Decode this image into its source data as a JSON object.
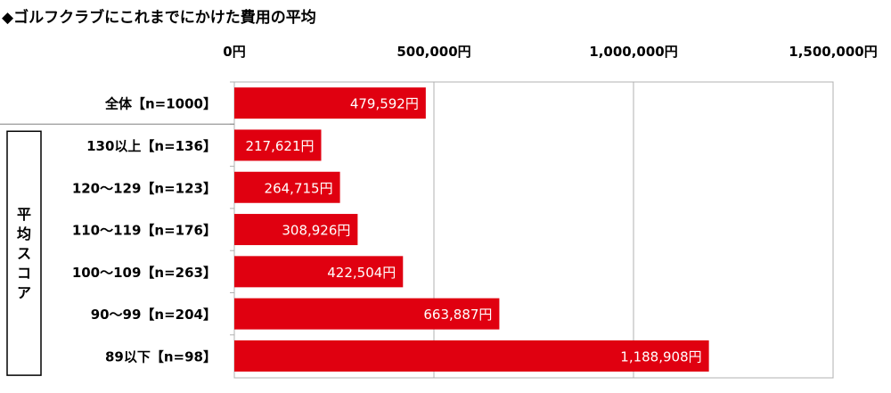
{
  "chart_data": {
    "type": "bar",
    "orientation": "horizontal",
    "title": "◆ゴルフクラブにこれまでにかけた費用の平均",
    "categories": [
      "全体【n=1000】",
      "130以上【n=136】",
      "120～129【n=123】",
      "110～119【n=176】",
      "100～109【n=263】",
      "90～99【n=204】",
      "89以下【n=98】"
    ],
    "values": [
      479592,
      217621,
      264715,
      308926,
      422504,
      663887,
      1188908
    ],
    "value_labels": [
      "479,592円",
      "217,621円",
      "264,715円",
      "308,926円",
      "422,504円",
      "663,887円",
      "1,188,908円"
    ],
    "group_label": "平均スコア",
    "group_members": [
      1,
      2,
      3,
      4,
      5,
      6
    ],
    "xlim": [
      0,
      1500000
    ],
    "xticks": [
      0,
      500000,
      1000000,
      1500000
    ],
    "xtick_labels": [
      "0円",
      "500,000円",
      "1,000,000円",
      "1,500,000円"
    ],
    "axis_position": "top",
    "grid": true,
    "bar_color": "#e00010",
    "grid_color": "#b0b0b0"
  }
}
